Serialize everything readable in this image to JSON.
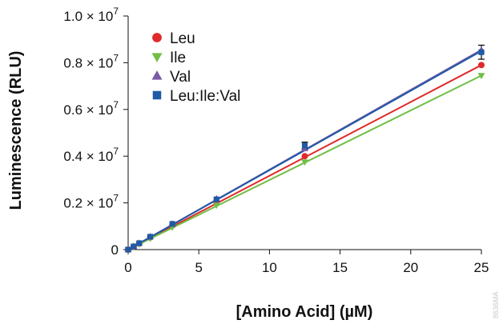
{
  "chart_data": {
    "type": "scatter",
    "xlabel": "[Amino Acid] (µM)",
    "ylabel": "Luminescence (RLU)",
    "xlim": [
      0,
      25
    ],
    "ylim": [
      0,
      10000000
    ],
    "x_ticks": [
      0,
      5,
      10,
      15,
      20,
      25
    ],
    "y_ticks": [
      {
        "value": 0,
        "label": "0",
        "exp": ""
      },
      {
        "value": 2000000,
        "label": "0.2 × 10",
        "exp": "7"
      },
      {
        "value": 4000000,
        "label": "0.4 × 10",
        "exp": "7"
      },
      {
        "value": 6000000,
        "label": "0.6 × 10",
        "exp": "7"
      },
      {
        "value": 8000000,
        "label": "0.8 × 10",
        "exp": "7"
      },
      {
        "value": 10000000,
        "label": "1.0 × 10",
        "exp": "7"
      }
    ],
    "grid": false,
    "legend_position": "top-left",
    "x": [
      0,
      0.39,
      0.78,
      1.56,
      3.125,
      6.25,
      12.5,
      25
    ],
    "series": [
      {
        "name": "Leu",
        "marker": "circle",
        "color": "#e02a2a",
        "values": [
          0,
          120000,
          260000,
          520000,
          1030000,
          2060000,
          4000000,
          7900000
        ],
        "fit": [
          0,
          7900000
        ]
      },
      {
        "name": "Ile",
        "marker": "triangle-down",
        "color": "#6fbe44",
        "values": [
          0,
          110000,
          240000,
          480000,
          960000,
          1900000,
          3750000,
          7450000
        ],
        "fit": [
          0,
          7450000
        ]
      },
      {
        "name": "Val",
        "marker": "triangle-up",
        "color": "#7b5aa6",
        "values": [
          0,
          140000,
          280000,
          560000,
          1100000,
          2180000,
          4320000,
          8550000
        ],
        "fit": [
          0,
          8550000
        ]
      },
      {
        "name": "Leu:Ile:Val",
        "marker": "square",
        "color": "#1f5aa6",
        "values": [
          0,
          135000,
          275000,
          550000,
          1100000,
          2150000,
          4450000,
          8450000
        ],
        "errors": [
          0,
          0,
          0,
          0,
          0,
          0,
          150000,
          300000
        ],
        "fit": [
          0,
          8500000
        ]
      }
    ],
    "legend": [
      "Leu",
      "Ile",
      "Val",
      "Leu:Ile:Val"
    ]
  },
  "watermark": "8636MA"
}
